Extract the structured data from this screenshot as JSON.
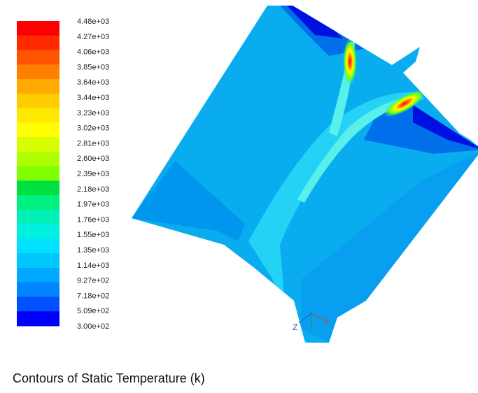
{
  "chart_data": {
    "type": "heatmap",
    "title": "Contours of Static Temperature (k)",
    "colorbar": {
      "ticks": [
        "4.48e+03",
        "4.27e+03",
        "4.06e+03",
        "3.85e+03",
        "3.64e+03",
        "3.44e+03",
        "3.23e+03",
        "3.02e+03",
        "2.81e+03",
        "2.60e+03",
        "2.39e+03",
        "2.18e+03",
        "1.97e+03",
        "1.76e+03",
        "1.55e+03",
        "1.35e+03",
        "1.14e+03",
        "9.27e+02",
        "7.18e+02",
        "5.09e+02",
        "3.00e+02"
      ],
      "min": 300,
      "max": 4480,
      "colors": [
        "#ff0000",
        "#ff2a00",
        "#ff5500",
        "#ff8000",
        "#ffaa00",
        "#ffcc00",
        "#ffe800",
        "#ffff00",
        "#d8ff00",
        "#b0ff00",
        "#80ff00",
        "#00e040",
        "#00f080",
        "#00f0b8",
        "#00f0e0",
        "#00e0ff",
        "#00c8ff",
        "#00a8ff",
        "#0084ff",
        "#0050ff",
        "#0000ff"
      ]
    },
    "axis_triad": [
      "Z",
      "X"
    ]
  },
  "colors": {
    "field_base": "#0aacf0",
    "field_core": "#23d2f5",
    "field_jet": "#58f0e8",
    "field_cool": "#0070ea",
    "field_cold": "#0010e0"
  }
}
